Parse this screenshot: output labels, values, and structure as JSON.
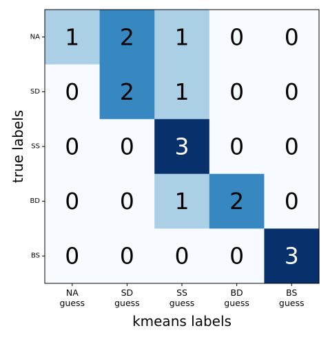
{
  "chart_data": {
    "type": "heatmap",
    "title": "",
    "xlabel": "kmeans labels",
    "ylabel": "true labels",
    "x_categories": [
      [
        "NA",
        "guess"
      ],
      [
        "SD",
        "guess"
      ],
      [
        "SS",
        "guess"
      ],
      [
        "BD",
        "guess"
      ],
      [
        "BS",
        "guess"
      ]
    ],
    "y_categories": [
      "NA",
      "SD",
      "SS",
      "BD",
      "BS"
    ],
    "values": [
      [
        1,
        2,
        1,
        0,
        0
      ],
      [
        0,
        2,
        1,
        0,
        0
      ],
      [
        0,
        0,
        3,
        0,
        0
      ],
      [
        0,
        0,
        1,
        2,
        0
      ],
      [
        0,
        0,
        0,
        0,
        3
      ]
    ],
    "colormap": "Blues",
    "value_range": [
      0,
      3
    ],
    "colors": {
      "0": "#f7fbff",
      "1": "#abd0e6",
      "2": "#3787c0",
      "3": "#08306b"
    },
    "grid": false
  }
}
